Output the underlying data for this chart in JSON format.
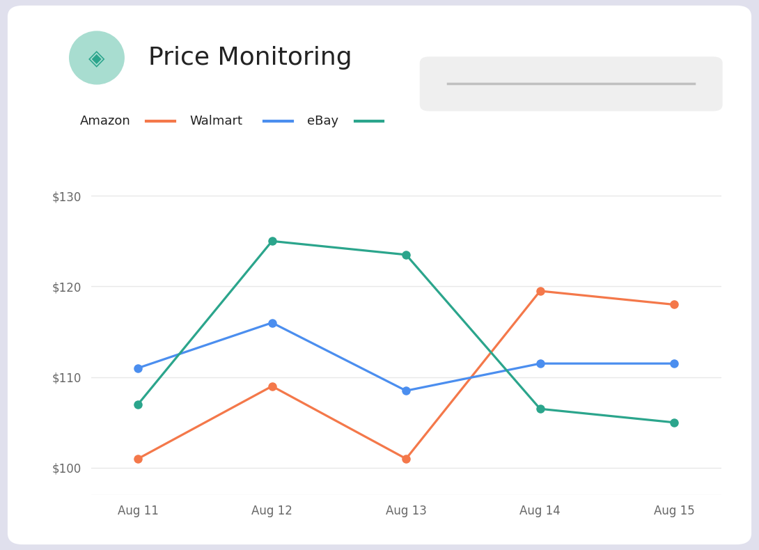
{
  "title": "Price Monitoring",
  "days": [
    "Aug 11",
    "Aug 12",
    "Aug 13",
    "Aug 14",
    "Aug 15"
  ],
  "amazon": [
    101,
    109,
    101,
    119.5,
    118
  ],
  "walmart": [
    111,
    116,
    108.5,
    111.5,
    111.5
  ],
  "ebay": [
    107,
    125,
    123.5,
    106.5,
    105
  ],
  "amazon_color": "#F4784A",
  "walmart_color": "#4B8EEF",
  "ebay_color": "#2BA58C",
  "ylim_min": 97,
  "ylim_max": 134,
  "yticks": [
    100,
    110,
    120,
    130
  ],
  "ytick_labels": [
    "$100",
    "$110",
    "$120",
    "$130"
  ],
  "background_outer": "#E0E0ED",
  "background_card": "#FFFFFF",
  "grid_color": "#E8E8E8",
  "title_color": "#222222",
  "tick_color": "#666666",
  "icon_bg": "#A8DDD0",
  "legend_bg": "#EFEFEF",
  "marker_size": 9,
  "line_width": 2.3
}
